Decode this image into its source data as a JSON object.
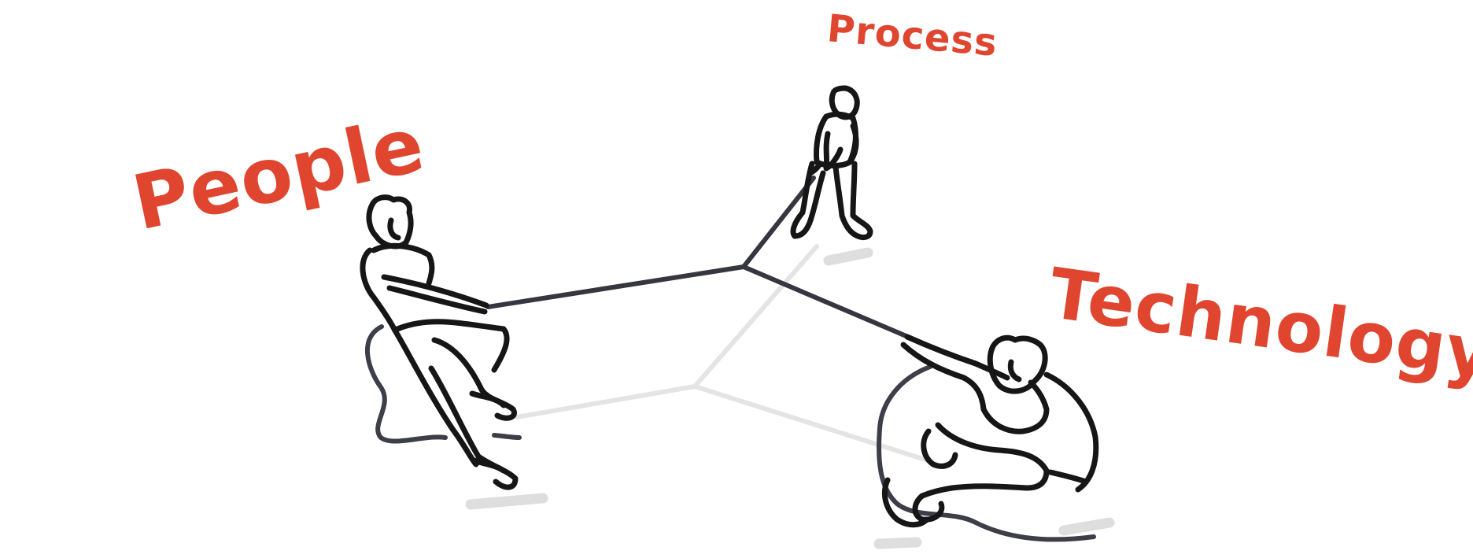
{
  "labels": {
    "people": "People",
    "process": "Process",
    "technology": "Technology"
  },
  "colors": {
    "label": "#e0452f",
    "ink": "#161616",
    "rope_front": "#35363f",
    "rope_back": "#e4e4e4",
    "shadow": "#dedede",
    "background": "#ffffff"
  }
}
